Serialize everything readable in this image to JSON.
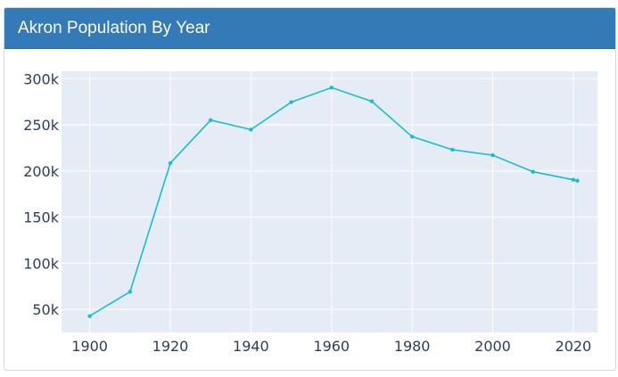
{
  "card": {
    "title": "Akron Population By Year"
  },
  "colors": {
    "header": "#337ab7",
    "plot_bg": "#e5ecf6",
    "grid": "#ffffff",
    "line": "#17becf",
    "tick_text": "#2a3f5f"
  },
  "chart_data": {
    "type": "line",
    "title": "Akron Population By Year",
    "xlabel": "",
    "ylabel": "",
    "xlim": [
      1893,
      2026
    ],
    "ylim": [
      25000,
      308000
    ],
    "x_ticks": [
      1900,
      1920,
      1940,
      1960,
      1980,
      2000,
      2020
    ],
    "x_tick_labels": [
      "1900",
      "1920",
      "1940",
      "1960",
      "1980",
      "2000",
      "2020"
    ],
    "y_ticks": [
      50000,
      100000,
      150000,
      200000,
      250000,
      300000
    ],
    "y_tick_labels": [
      "50k",
      "100k",
      "150k",
      "200k",
      "250k",
      "300k"
    ],
    "grid": true,
    "series": [
      {
        "name": "Population",
        "x": [
          1900,
          1910,
          1920,
          1930,
          1940,
          1950,
          1960,
          1970,
          1980,
          1990,
          2000,
          2010,
          2020,
          2021
        ],
        "values": [
          42728,
          69067,
          208435,
          255040,
          244791,
          274605,
          290351,
          275425,
          237177,
          223019,
          217074,
          199110,
          190469,
          189347
        ]
      }
    ]
  }
}
